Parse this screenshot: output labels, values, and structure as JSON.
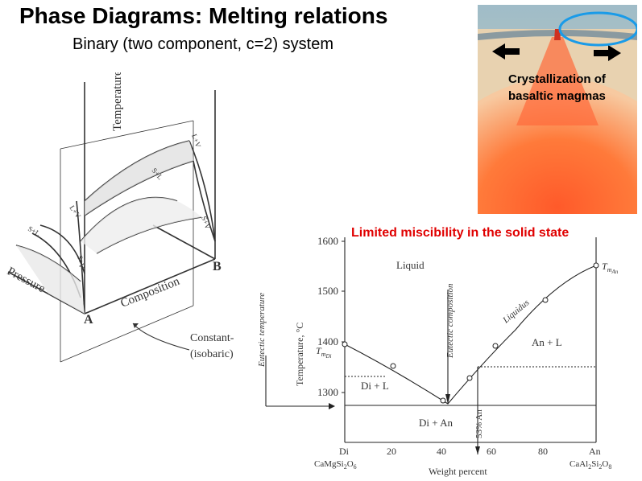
{
  "title": "Phase Diagrams: Melting relations",
  "subtitle": "Binary (two component, c=2) system",
  "photo_caption": {
    "line1": "Crystallization of",
    "line2": "basaltic magmas"
  },
  "red_caption": "Limited miscibility in the solid state",
  "diagram3d": {
    "temperature": "Temperature",
    "pressure": "Pressure",
    "composition": "Composition",
    "corner_a": "A",
    "corner_b": "B",
    "constant_line1": "Constant-",
    "constant_line2": "(isobaric)",
    "region_l_v": "L+V",
    "region_s_l_right": "S+L",
    "region_s_v_right": "S+V",
    "region_l_v_left": "L+V",
    "region_s_l_left": "S+L",
    "region_s_v_left": "S+V"
  },
  "binary": {
    "liquid": "Liquid",
    "liquidus": "Liquidus",
    "an_l": "An + L",
    "di_l": "Di + L",
    "di_an": "Di + An",
    "eutectic_temperature": "Eutectic temperature",
    "eutectic_composition": "Eutectic composition",
    "eutectic_pct": "53% An",
    "ylabel": "Temperature, °C",
    "xlabel": "Weight percent",
    "t_m_di": "T",
    "t_m_di_sub": "m",
    "t_m_di_subsub": "Di",
    "t_m_an": "T",
    "t_m_an_sub": "m",
    "t_m_an_subsub": "An",
    "y_ticks": [
      "1600",
      "1500",
      "1400",
      "1300"
    ],
    "x_ticks": [
      "Di",
      "20",
      "40",
      "60",
      "80",
      "An"
    ],
    "formula_left": "CaMgSi",
    "formula_left_s1": "2",
    "formula_left_mid": "O",
    "formula_left_s2": "6",
    "formula_right": "CaAl",
    "formula_right_s1": "2",
    "formula_right_mid": "Si",
    "formula_right_s2": "2",
    "formula_right_end": "O",
    "formula_right_s3": "8"
  }
}
